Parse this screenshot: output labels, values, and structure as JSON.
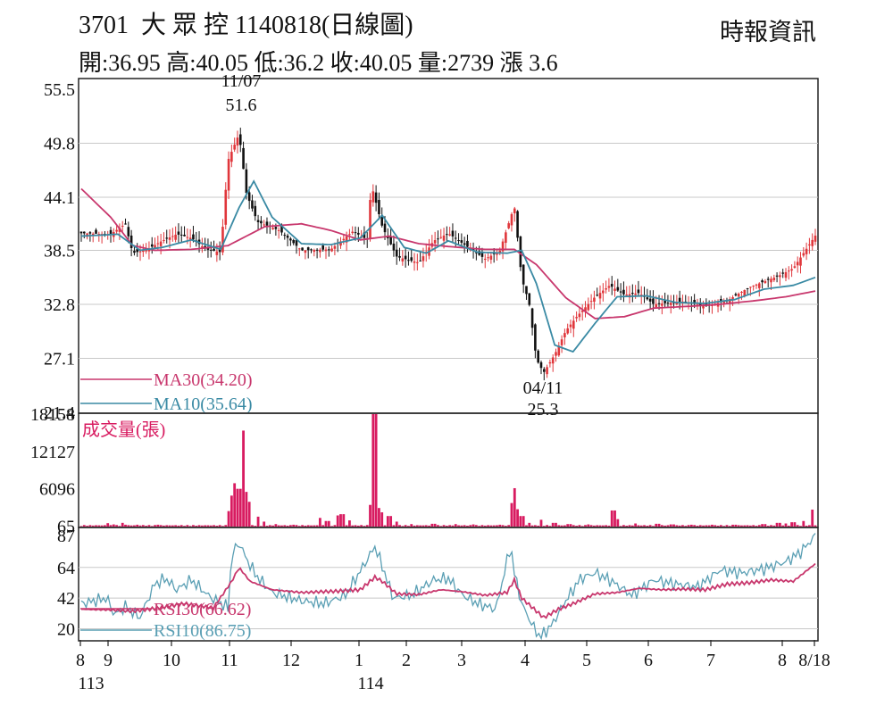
{
  "header": {
    "title": "3701  大 眾 控 1140818(日線圖)",
    "source": "時報資訊",
    "quote": "開:36.95 高:40.05 低:36.2 收:40.05 量:2739 漲 3.6"
  },
  "colors": {
    "up": "#e0363b",
    "down": "#111111",
    "ma30": "#c8376d",
    "ma10": "#3a8aa4",
    "volume": "#d81b60",
    "rsi30": "#c8376d",
    "rsi10": "#5a9fb4",
    "grid": "#c8c8c8"
  },
  "chart_data": [
    {
      "type": "candlestick",
      "title": "3701 大眾控 日線圖",
      "ylim": [
        21.4,
        55.5
      ],
      "y_ticks": [
        "55.5",
        "49.8",
        "44.1",
        "38.5",
        "32.8",
        "27.1",
        "21.4"
      ],
      "x_ticks": [
        "8",
        "9",
        "10",
        "11",
        "12",
        "1",
        "2",
        "3",
        "4",
        "5",
        "6",
        "7",
        "8",
        "8/18"
      ],
      "x_year_labels": [
        "113",
        "114"
      ],
      "annotations": [
        {
          "label": "11/07",
          "value": "51.6",
          "note": "high"
        },
        {
          "label": "04/11",
          "value": "25.3",
          "note": "low"
        }
      ],
      "series": [
        {
          "name": "MA30(34.20)",
          "value": 34.2
        },
        {
          "name": "MA10(35.64)",
          "value": 35.64
        }
      ],
      "price_path": [
        [
          0,
          40.3
        ],
        [
          0.04,
          40.2
        ],
        [
          0.06,
          41.3
        ],
        [
          0.07,
          38.2
        ],
        [
          0.09,
          38.6
        ],
        [
          0.11,
          39.5
        ],
        [
          0.13,
          40.2
        ],
        [
          0.15,
          39.8
        ],
        [
          0.17,
          38.6
        ],
        [
          0.19,
          38.3
        ],
        [
          0.2,
          48.0
        ],
        [
          0.215,
          50.8
        ],
        [
          0.225,
          44.5
        ],
        [
          0.24,
          41.5
        ],
        [
          0.27,
          40.6
        ],
        [
          0.3,
          38.5
        ],
        [
          0.34,
          38.6
        ],
        [
          0.37,
          40.5
        ],
        [
          0.39,
          39.6
        ],
        [
          0.395,
          45.5
        ],
        [
          0.41,
          41.0
        ],
        [
          0.43,
          37.8
        ],
        [
          0.46,
          37.2
        ],
        [
          0.48,
          39.5
        ],
        [
          0.5,
          40.3
        ],
        [
          0.52,
          39.2
        ],
        [
          0.55,
          37.6
        ],
        [
          0.57,
          38.4
        ],
        [
          0.59,
          43.2
        ],
        [
          0.6,
          35.5
        ],
        [
          0.61,
          33.0
        ],
        [
          0.62,
          27.0
        ],
        [
          0.63,
          25.6
        ],
        [
          0.645,
          27.5
        ],
        [
          0.66,
          30.0
        ],
        [
          0.675,
          31.5
        ],
        [
          0.7,
          33.6
        ],
        [
          0.72,
          34.8
        ],
        [
          0.74,
          33.8
        ],
        [
          0.76,
          34.0
        ],
        [
          0.78,
          32.8
        ],
        [
          0.82,
          33.1
        ],
        [
          0.85,
          32.6
        ],
        [
          0.88,
          33.2
        ],
        [
          0.91,
          34.6
        ],
        [
          0.95,
          35.8
        ],
        [
          0.97,
          36.6
        ],
        [
          1.0,
          40.05
        ]
      ],
      "ma30_path": [
        [
          0,
          45.0
        ],
        [
          0.04,
          42.0
        ],
        [
          0.07,
          39.0
        ],
        [
          0.1,
          38.5
        ],
        [
          0.15,
          38.6
        ],
        [
          0.2,
          39.0
        ],
        [
          0.25,
          41.0
        ],
        [
          0.3,
          41.3
        ],
        [
          0.34,
          40.6
        ],
        [
          0.38,
          39.6
        ],
        [
          0.42,
          40.0
        ],
        [
          0.46,
          39.2
        ],
        [
          0.5,
          38.9
        ],
        [
          0.55,
          38.6
        ],
        [
          0.59,
          38.6
        ],
        [
          0.62,
          37.0
        ],
        [
          0.66,
          33.5
        ],
        [
          0.7,
          31.3
        ],
        [
          0.74,
          31.5
        ],
        [
          0.78,
          32.4
        ],
        [
          0.83,
          32.6
        ],
        [
          0.87,
          32.8
        ],
        [
          0.92,
          33.2
        ],
        [
          0.96,
          33.6
        ],
        [
          1.0,
          34.2
        ]
      ],
      "ma10_path": [
        [
          0,
          40.0
        ],
        [
          0.05,
          40.2
        ],
        [
          0.08,
          38.5
        ],
        [
          0.11,
          38.8
        ],
        [
          0.15,
          39.6
        ],
        [
          0.19,
          38.6
        ],
        [
          0.215,
          43.0
        ],
        [
          0.235,
          45.8
        ],
        [
          0.26,
          42.0
        ],
        [
          0.3,
          39.2
        ],
        [
          0.34,
          39.1
        ],
        [
          0.38,
          39.8
        ],
        [
          0.41,
          42.2
        ],
        [
          0.44,
          38.8
        ],
        [
          0.47,
          38.2
        ],
        [
          0.5,
          39.5
        ],
        [
          0.54,
          38.3
        ],
        [
          0.58,
          38.2
        ],
        [
          0.6,
          38.5
        ],
        [
          0.62,
          35.0
        ],
        [
          0.645,
          28.5
        ],
        [
          0.67,
          27.8
        ],
        [
          0.7,
          30.8
        ],
        [
          0.73,
          33.6
        ],
        [
          0.77,
          33.7
        ],
        [
          0.81,
          33.0
        ],
        [
          0.85,
          32.9
        ],
        [
          0.89,
          33.3
        ],
        [
          0.93,
          34.4
        ],
        [
          0.97,
          34.8
        ],
        [
          1.0,
          35.64
        ]
      ]
    },
    {
      "type": "bar",
      "title": "成交量(張)",
      "ylim": [
        0,
        18158
      ],
      "y_ticks": [
        "18158",
        "12127",
        "6096",
        "65"
      ],
      "spikes": [
        [
          0.02,
          200
        ],
        [
          0.035,
          550
        ],
        [
          0.045,
          350
        ],
        [
          0.055,
          600
        ],
        [
          0.06,
          300
        ],
        [
          0.075,
          300
        ],
        [
          0.085,
          250
        ],
        [
          0.105,
          300
        ],
        [
          0.13,
          200
        ],
        [
          0.165,
          150
        ],
        [
          0.2,
          2500
        ],
        [
          0.205,
          5000
        ],
        [
          0.21,
          7000
        ],
        [
          0.215,
          6100
        ],
        [
          0.22,
          15500
        ],
        [
          0.225,
          5600
        ],
        [
          0.23,
          4000
        ],
        [
          0.24,
          1600
        ],
        [
          0.25,
          800
        ],
        [
          0.265,
          400
        ],
        [
          0.29,
          300
        ],
        [
          0.32,
          200
        ],
        [
          0.325,
          1400
        ],
        [
          0.335,
          900
        ],
        [
          0.35,
          1800
        ],
        [
          0.355,
          2000
        ],
        [
          0.365,
          1000
        ],
        [
          0.395,
          3500
        ],
        [
          0.4,
          18158
        ],
        [
          0.405,
          3000
        ],
        [
          0.41,
          2300
        ],
        [
          0.42,
          1700
        ],
        [
          0.43,
          800
        ],
        [
          0.45,
          400
        ],
        [
          0.48,
          450
        ],
        [
          0.51,
          400
        ],
        [
          0.535,
          350
        ],
        [
          0.57,
          300
        ],
        [
          0.585,
          3800
        ],
        [
          0.59,
          6200
        ],
        [
          0.595,
          2800
        ],
        [
          0.6,
          1700
        ],
        [
          0.61,
          600
        ],
        [
          0.625,
          1100
        ],
        [
          0.645,
          600
        ],
        [
          0.665,
          400
        ],
        [
          0.69,
          350
        ],
        [
          0.725,
          2600
        ],
        [
          0.73,
          1200
        ],
        [
          0.755,
          500
        ],
        [
          0.785,
          450
        ],
        [
          0.805,
          350
        ],
        [
          0.83,
          300
        ],
        [
          0.86,
          300
        ],
        [
          0.89,
          300
        ],
        [
          0.93,
          400
        ],
        [
          0.95,
          600
        ],
        [
          0.96,
          500
        ],
        [
          0.97,
          700
        ],
        [
          0.985,
          900
        ],
        [
          0.995,
          2739
        ]
      ]
    },
    {
      "type": "line",
      "title": "RSI",
      "ylim": [
        12,
        92
      ],
      "y_ticks": [
        "87",
        "64",
        "42",
        "20"
      ],
      "series": [
        {
          "name": "RSI30(66.62)",
          "value": 66.62,
          "path": [
            [
              0,
              34
            ],
            [
              0.04,
              33.5
            ],
            [
              0.07,
              32.5
            ],
            [
              0.1,
              34.5
            ],
            [
              0.14,
              38
            ],
            [
              0.18,
              35
            ],
            [
              0.205,
              54
            ],
            [
              0.215,
              64
            ],
            [
              0.23,
              54
            ],
            [
              0.26,
              48
            ],
            [
              0.3,
              46
            ],
            [
              0.35,
              47
            ],
            [
              0.38,
              48
            ],
            [
              0.4,
              57
            ],
            [
              0.41,
              54
            ],
            [
              0.43,
              45
            ],
            [
              0.46,
              44.5
            ],
            [
              0.49,
              48
            ],
            [
              0.52,
              46.5
            ],
            [
              0.55,
              44
            ],
            [
              0.58,
              46
            ],
            [
              0.59,
              55
            ],
            [
              0.6,
              42
            ],
            [
              0.615,
              35
            ],
            [
              0.63,
              28
            ],
            [
              0.65,
              34
            ],
            [
              0.67,
              38
            ],
            [
              0.7,
              45
            ],
            [
              0.73,
              46
            ],
            [
              0.76,
              49
            ],
            [
              0.79,
              48
            ],
            [
              0.82,
              48.5
            ],
            [
              0.85,
              48
            ],
            [
              0.88,
              52
            ],
            [
              0.91,
              53
            ],
            [
              0.94,
              55
            ],
            [
              0.97,
              54
            ],
            [
              1.0,
              66.62
            ]
          ]
        },
        {
          "name": "RSI10(86.75)",
          "value": 86.75,
          "path": [
            [
              0,
              38
            ],
            [
              0.035,
              42
            ],
            [
              0.045,
              30
            ],
            [
              0.06,
              36
            ],
            [
              0.08,
              28
            ],
            [
              0.1,
              52
            ],
            [
              0.115,
              56
            ],
            [
              0.13,
              48
            ],
            [
              0.15,
              55
            ],
            [
              0.175,
              43
            ],
            [
              0.2,
              35
            ],
            [
              0.205,
              73
            ],
            [
              0.215,
              82
            ],
            [
              0.225,
              70
            ],
            [
              0.24,
              57
            ],
            [
              0.26,
              46
            ],
            [
              0.3,
              40
            ],
            [
              0.33,
              38
            ],
            [
              0.36,
              44
            ],
            [
              0.39,
              70
            ],
            [
              0.4,
              79
            ],
            [
              0.41,
              65
            ],
            [
              0.425,
              42
            ],
            [
              0.45,
              44
            ],
            [
              0.48,
              55
            ],
            [
              0.5,
              56
            ],
            [
              0.52,
              44
            ],
            [
              0.54,
              38
            ],
            [
              0.565,
              34
            ],
            [
              0.585,
              80
            ],
            [
              0.59,
              60
            ],
            [
              0.6,
              38
            ],
            [
              0.615,
              22
            ],
            [
              0.625,
              14
            ],
            [
              0.64,
              22
            ],
            [
              0.66,
              40
            ],
            [
              0.68,
              56
            ],
            [
              0.7,
              60
            ],
            [
              0.72,
              55
            ],
            [
              0.75,
              44
            ],
            [
              0.78,
              55
            ],
            [
              0.81,
              52
            ],
            [
              0.84,
              50
            ],
            [
              0.87,
              62
            ],
            [
              0.9,
              60
            ],
            [
              0.93,
              63
            ],
            [
              0.96,
              68
            ],
            [
              0.98,
              75
            ],
            [
              1.0,
              86.75
            ]
          ]
        }
      ]
    }
  ]
}
